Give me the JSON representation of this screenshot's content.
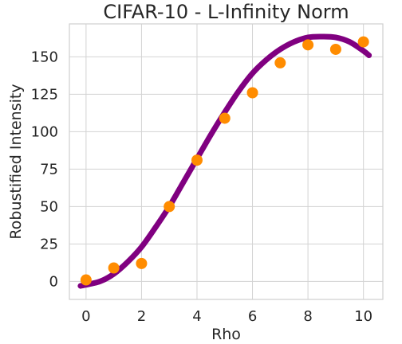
{
  "chart_data": {
    "type": "scatter",
    "title": "CIFAR-10 - L-Infinity Norm",
    "xlabel": "Rho",
    "ylabel": "Robustified Intensity",
    "xlim": [
      -0.6,
      10.7
    ],
    "ylim": [
      -12,
      172
    ],
    "xticks": [
      0,
      2,
      4,
      6,
      8,
      10
    ],
    "xtick_labels": [
      "0",
      "2",
      "4",
      "6",
      "8",
      "10"
    ],
    "yticks": [
      0,
      25,
      50,
      75,
      100,
      125,
      150
    ],
    "ytick_labels": [
      "0",
      "25",
      "50",
      "75",
      "100",
      "125",
      "150"
    ],
    "grid": true,
    "series": [
      {
        "kind": "points",
        "color": "#ff8c00",
        "x": [
          0,
          1,
          2,
          3,
          4,
          5,
          6,
          7,
          8,
          9,
          10
        ],
        "y": [
          1,
          9,
          12,
          50,
          81,
          109,
          126,
          146,
          158,
          155,
          160
        ]
      },
      {
        "kind": "fit-curve",
        "color": "#800080",
        "x": [
          -0.2,
          0.5,
          1,
          1.5,
          2,
          2.5,
          3,
          3.5,
          4,
          4.5,
          5,
          5.5,
          6,
          6.5,
          7,
          7.5,
          8,
          8.5,
          9,
          9.5,
          10,
          10.2
        ],
        "y": [
          -3,
          0,
          5,
          13,
          23,
          36,
          50,
          66,
          82,
          98,
          113,
          127,
          139,
          148,
          155,
          160,
          163,
          163.5,
          163,
          160,
          154,
          151
        ]
      }
    ]
  }
}
